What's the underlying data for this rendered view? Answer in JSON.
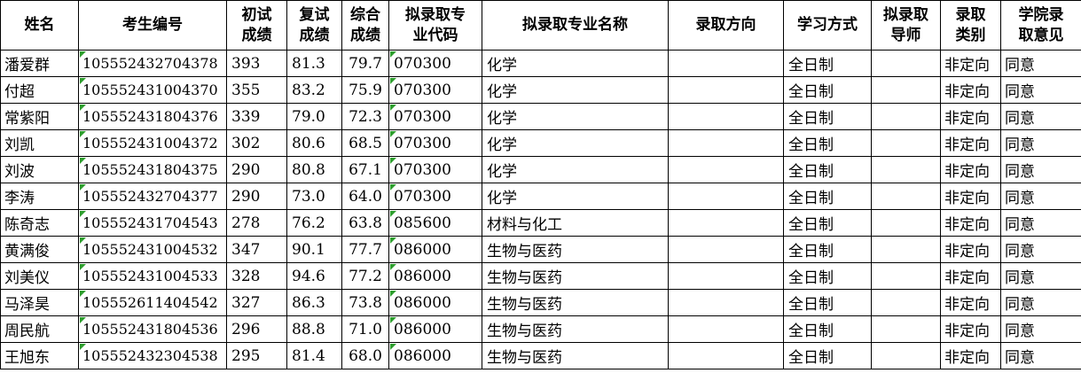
{
  "table": {
    "columns": [
      {
        "id": "name",
        "label": "姓名"
      },
      {
        "id": "candidate_no",
        "label": "考生编号",
        "flagged": true
      },
      {
        "id": "initial_score",
        "label": "初试\n成绩"
      },
      {
        "id": "retest_score",
        "label": "复试\n成绩"
      },
      {
        "id": "overall_score",
        "label": "综合\n成绩"
      },
      {
        "id": "major_code",
        "label": "拟录取专\n业代码",
        "flagged": true
      },
      {
        "id": "major_name",
        "label": "拟录取专业名称"
      },
      {
        "id": "direction",
        "label": "录取方向"
      },
      {
        "id": "study_mode",
        "label": "学习方式"
      },
      {
        "id": "supervisor",
        "label": "拟录取\n导师"
      },
      {
        "id": "category",
        "label": "录取\n类别"
      },
      {
        "id": "college_opinion",
        "label": "学院录\n取意见"
      }
    ],
    "rows": [
      {
        "name": "潘爱群",
        "candidate_no": "105552432704378",
        "initial_score": "393",
        "retest_score": "81.3",
        "overall_score": "79.7",
        "major_code": "070300",
        "major_name": "化学",
        "direction": "",
        "study_mode": "全日制",
        "supervisor": "",
        "category": "非定向",
        "college_opinion": "同意"
      },
      {
        "name": "付超",
        "candidate_no": "105552431004370",
        "initial_score": "355",
        "retest_score": "83.2",
        "overall_score": "75.9",
        "major_code": "070300",
        "major_name": "化学",
        "direction": "",
        "study_mode": "全日制",
        "supervisor": "",
        "category": "非定向",
        "college_opinion": "同意"
      },
      {
        "name": "常紫阳",
        "candidate_no": "105552431804376",
        "initial_score": "339",
        "retest_score": "79.0",
        "overall_score": "72.3",
        "major_code": "070300",
        "major_name": "化学",
        "direction": "",
        "study_mode": "全日制",
        "supervisor": "",
        "category": "非定向",
        "college_opinion": "同意"
      },
      {
        "name": "刘凯",
        "candidate_no": "105552431004372",
        "initial_score": "302",
        "retest_score": "80.6",
        "overall_score": "68.5",
        "major_code": "070300",
        "major_name": "化学",
        "direction": "",
        "study_mode": "全日制",
        "supervisor": "",
        "category": "非定向",
        "college_opinion": "同意"
      },
      {
        "name": "刘波",
        "candidate_no": "105552431804375",
        "initial_score": "290",
        "retest_score": "80.8",
        "overall_score": "67.1",
        "major_code": "070300",
        "major_name": "化学",
        "direction": "",
        "study_mode": "全日制",
        "supervisor": "",
        "category": "非定向",
        "college_opinion": "同意"
      },
      {
        "name": "李涛",
        "candidate_no": "105552432704377",
        "initial_score": "290",
        "retest_score": "73.0",
        "overall_score": "64.0",
        "major_code": "070300",
        "major_name": "化学",
        "direction": "",
        "study_mode": "全日制",
        "supervisor": "",
        "category": "非定向",
        "college_opinion": "同意"
      },
      {
        "name": "陈奇志",
        "candidate_no": "105552431704543",
        "initial_score": "278",
        "retest_score": "76.2",
        "overall_score": "63.8",
        "major_code": "085600",
        "major_name": "材料与化工",
        "direction": "",
        "study_mode": "全日制",
        "supervisor": "",
        "category": "非定向",
        "college_opinion": "同意"
      },
      {
        "name": "黄满俊",
        "candidate_no": "105552431004532",
        "initial_score": "347",
        "retest_score": "90.1",
        "overall_score": "77.7",
        "major_code": "086000",
        "major_name": "生物与医药",
        "direction": "",
        "study_mode": "全日制",
        "supervisor": "",
        "category": "非定向",
        "college_opinion": "同意"
      },
      {
        "name": "刘美仪",
        "candidate_no": "105552431004533",
        "initial_score": "328",
        "retest_score": "94.6",
        "overall_score": "77.2",
        "major_code": "086000",
        "major_name": "生物与医药",
        "direction": "",
        "study_mode": "全日制",
        "supervisor": "",
        "category": "非定向",
        "college_opinion": "同意"
      },
      {
        "name": "马泽昊",
        "candidate_no": "105552611404542",
        "initial_score": "327",
        "retest_score": "86.3",
        "overall_score": "73.8",
        "major_code": "086000",
        "major_name": "生物与医药",
        "direction": "",
        "study_mode": "全日制",
        "supervisor": "",
        "category": "非定向",
        "college_opinion": "同意"
      },
      {
        "name": "周民航",
        "candidate_no": "105552431804536",
        "initial_score": "296",
        "retest_score": "88.8",
        "overall_score": "71.0",
        "major_code": "086000",
        "major_name": "生物与医药",
        "direction": "",
        "study_mode": "全日制",
        "supervisor": "",
        "category": "非定向",
        "college_opinion": "同意"
      },
      {
        "name": "王旭东",
        "candidate_no": "105552432304538",
        "initial_score": "295",
        "retest_score": "81.4",
        "overall_score": "68.0",
        "major_code": "086000",
        "major_name": "生物与医药",
        "direction": "",
        "study_mode": "全日制",
        "supervisor": "",
        "category": "非定向",
        "college_opinion": "同意"
      }
    ]
  },
  "colors": {
    "text": "#000000",
    "border": "#000000",
    "background": "#ffffff",
    "indicator_green": "#2e9e2e"
  }
}
